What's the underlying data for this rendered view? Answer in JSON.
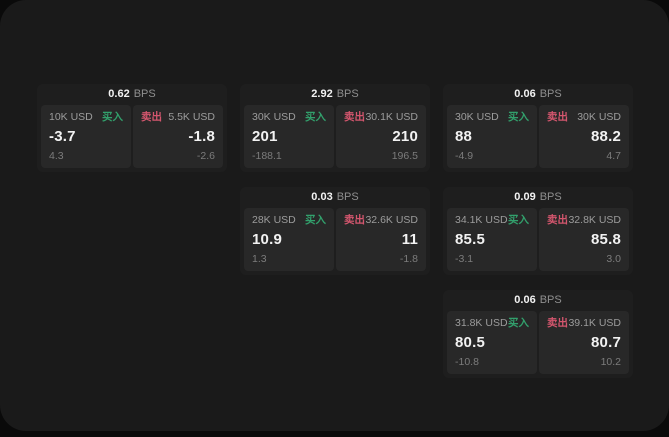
{
  "theme": {
    "outer_bg": "#0a0a0a",
    "panel_bg": "#1a1a1a",
    "card_bg": "#1e1e1e",
    "tile_bg": "#282828",
    "text_primary": "#f2f2f2",
    "text_secondary": "#9c9c9c",
    "text_muted": "#7c7c7c",
    "buy_color": "#32a06c",
    "sell_color": "#d4566e"
  },
  "labels": {
    "bps_unit": "BPS",
    "buy": "买入",
    "sell": "卖出"
  },
  "cards": [
    {
      "bps": "0.62",
      "row": 1,
      "col": 1,
      "buy": {
        "size": "10K USD",
        "price": "-3.7",
        "delta": "4.3"
      },
      "sell": {
        "size": "5.5K USD",
        "price": "-1.8",
        "delta": "-2.6"
      }
    },
    {
      "bps": "2.92",
      "row": 1,
      "col": 2,
      "buy": {
        "size": "30K USD",
        "price": "201",
        "delta": "-188.1"
      },
      "sell": {
        "size": "30.1K USD",
        "price": "210",
        "delta": "196.5"
      }
    },
    {
      "bps": "0.06",
      "row": 1,
      "col": 3,
      "buy": {
        "size": "30K USD",
        "price": "88",
        "delta": "-4.9"
      },
      "sell": {
        "size": "30K USD",
        "price": "88.2",
        "delta": "4.7"
      }
    },
    {
      "bps": "0.03",
      "row": 2,
      "col": 2,
      "buy": {
        "size": "28K USD",
        "price": "10.9",
        "delta": "1.3"
      },
      "sell": {
        "size": "32.6K USD",
        "price": "11",
        "delta": "-1.8"
      }
    },
    {
      "bps": "0.09",
      "row": 2,
      "col": 3,
      "buy": {
        "size": "34.1K USD",
        "price": "85.5",
        "delta": "-3.1"
      },
      "sell": {
        "size": "32.8K USD",
        "price": "85.8",
        "delta": "3.0"
      }
    },
    {
      "bps": "0.06",
      "row": 3,
      "col": 3,
      "buy": {
        "size": "31.8K USD",
        "price": "80.5",
        "delta": "-10.8"
      },
      "sell": {
        "size": "39.1K USD",
        "price": "80.7",
        "delta": "10.2"
      }
    }
  ]
}
